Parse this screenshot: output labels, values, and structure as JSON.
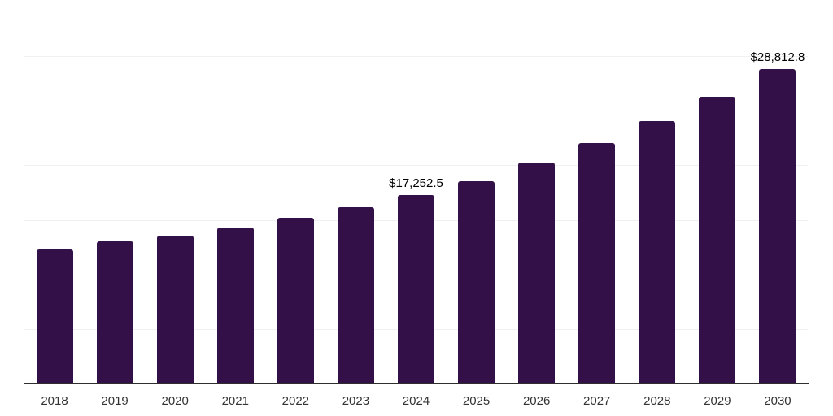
{
  "page": {
    "background": "#ffffff"
  },
  "chart_data": {
    "type": "bar",
    "title": "",
    "xlabel": "",
    "ylabel": "",
    "categories": [
      "2018",
      "2019",
      "2020",
      "2021",
      "2022",
      "2023",
      "2024",
      "2025",
      "2026",
      "2027",
      "2028",
      "2029",
      "2030"
    ],
    "values": [
      12320,
      13060,
      13580,
      14330,
      15220,
      16190,
      17252.5,
      18570,
      20280,
      22060,
      24060,
      26290,
      28812.8
    ],
    "ylim": [
      0,
      35000
    ],
    "grid_step": 5000,
    "grid": true,
    "legend": false,
    "annotations": [
      {
        "index": 6,
        "text": "$17,252.5"
      },
      {
        "index": 12,
        "text": "$28,812.8"
      }
    ],
    "colors": {
      "bar": "#331148",
      "gridline": "#f0f0f2",
      "axis_line": "#2e2e2e",
      "tick_label": "#333333",
      "data_label": "#000000"
    }
  }
}
